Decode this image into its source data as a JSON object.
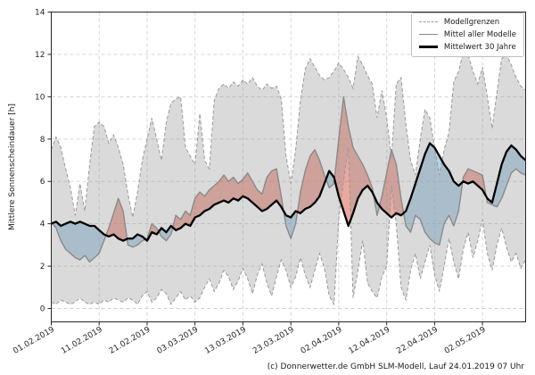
{
  "chart": {
    "ylabel": "Mittlere Sonnenscheindauer [h]",
    "caption": "(c) Donnerwetter.de GmbH SLM-Modell, Lauf 24.01.2019 07 Uhr",
    "legend": {
      "items": [
        {
          "label": "Modellgrenzen",
          "style": "dashed-gray"
        },
        {
          "label": "Mittel aller Modelle",
          "style": "solid-gray"
        },
        {
          "label": "Mittelwert 30 Jahre",
          "style": "thick-black"
        }
      ]
    }
  },
  "chart_data": {
    "type": "line",
    "title": "",
    "xlabel": "",
    "ylabel": "Mittlere Sonnenscheindauer [h]",
    "ylim": [
      0,
      14
    ],
    "yticks": [
      0,
      2,
      4,
      6,
      8,
      10,
      12,
      14
    ],
    "grid": true,
    "legend_position": "upper right",
    "x_start_date": "01.02.2019",
    "x_step": "1 day",
    "x_tick_labels": [
      "01.02.2019",
      "11.02.2019",
      "21.02.2019",
      "03.03.2019",
      "13.03.2019",
      "23.03.2019",
      "02.04.2019",
      "12.04.2019",
      "22.04.2019",
      "02.05.2019"
    ],
    "x_tick_day_indices": [
      0,
      10,
      20,
      30,
      40,
      50,
      60,
      70,
      80,
      90
    ],
    "style": {
      "band_fill": "rgba(150,150,150,0.35)",
      "band_edge": "#999999",
      "above_fill": "rgba(222,96,77,0.55)",
      "below_fill": "rgba(120,175,210,0.55)",
      "model_mean_line": "#8a8a8a",
      "mean30_line": "#000000",
      "grid_color": "#cfcfcf",
      "spine_color": "#262626",
      "tick_text_color": "#262626"
    },
    "series": [
      {
        "name": "Modellgrenzen (obere Grenze)",
        "role": "band_upper",
        "values": [
          7.5,
          8.1,
          7.6,
          6.6,
          5.7,
          4.4,
          5.9,
          4.6,
          6.8,
          8.6,
          8.8,
          8.6,
          7.8,
          8.2,
          7.6,
          6.8,
          5.4,
          4.3,
          5.5,
          7.0,
          8.0,
          9.0,
          8.0,
          7.0,
          8.8,
          9.7,
          9.9,
          10.0,
          7.6,
          7.2,
          6.8,
          9.2,
          7.0,
          6.6,
          9.8,
          10.4,
          10.6,
          10.4,
          10.7,
          10.5,
          10.8,
          10.6,
          10.9,
          10.5,
          10.3,
          10.6,
          10.4,
          10.5,
          9.9,
          7.2,
          5.9,
          7.5,
          9.8,
          11.3,
          11.8,
          11.4,
          11.0,
          10.8,
          10.9,
          11.2,
          11.6,
          11.3,
          10.9,
          10.4,
          11.9,
          11.5,
          11.0,
          10.6,
          9.0,
          10.3,
          9.0,
          7.1,
          10.6,
          10.9,
          8.7,
          7.0,
          6.3,
          8.0,
          9.4,
          9.0,
          7.6,
          6.3,
          7.5,
          8.3,
          10.7,
          11.2,
          12.1,
          12.0,
          11.2,
          10.6,
          11.4,
          10.0,
          8.5,
          10.2,
          11.8,
          12.0,
          11.5,
          10.9,
          10.5,
          10.3
        ]
      },
      {
        "name": "Modellgrenzen (untere Grenze)",
        "role": "band_lower",
        "values": [
          0.3,
          0.2,
          0.4,
          0.3,
          0.2,
          0.3,
          0.5,
          0.3,
          0.2,
          0.3,
          0.2,
          0.4,
          0.3,
          0.5,
          0.4,
          0.3,
          0.5,
          0.4,
          0.2,
          0.6,
          0.8,
          0.3,
          0.5,
          0.9,
          0.7,
          0.2,
          0.5,
          0.8,
          0.4,
          0.6,
          0.3,
          0.5,
          1.0,
          1.4,
          0.8,
          1.2,
          1.8,
          1.5,
          0.9,
          1.3,
          1.9,
          1.4,
          0.7,
          1.6,
          2.1,
          1.2,
          0.6,
          1.5,
          2.3,
          1.8,
          1.0,
          1.5,
          2.4,
          1.6,
          1.0,
          1.8,
          2.6,
          1.9,
          0.6,
          0.2,
          4.2,
          6.0,
          7.6,
          0.5,
          1.8,
          3.2,
          1.2,
          0.8,
          0.5,
          1.5,
          2.0,
          5.8,
          4.0,
          1.0,
          0.4,
          1.8,
          2.6,
          1.4,
          2.2,
          3.0,
          1.6,
          0.8,
          2.0,
          3.3,
          2.2,
          1.4,
          2.8,
          3.6,
          2.4,
          3.2,
          4.2,
          2.6,
          1.8,
          3.0,
          3.8,
          2.9,
          2.2,
          2.6,
          1.9,
          2.3
        ]
      },
      {
        "name": "Mittel aller Modelle",
        "role": "model_mean",
        "values": [
          4.1,
          3.8,
          3.2,
          2.8,
          2.6,
          2.4,
          2.3,
          2.5,
          2.2,
          2.4,
          2.6,
          3.2,
          3.8,
          4.5,
          5.2,
          4.6,
          3.0,
          2.9,
          3.0,
          3.2,
          3.3,
          4.0,
          3.8,
          3.4,
          3.2,
          3.5,
          4.4,
          4.2,
          4.6,
          4.4,
          5.2,
          5.5,
          5.3,
          5.6,
          5.8,
          6.0,
          6.3,
          6.0,
          6.2,
          5.9,
          6.1,
          6.4,
          6.0,
          5.6,
          5.4,
          6.2,
          6.5,
          6.6,
          5.3,
          3.9,
          3.3,
          4.0,
          5.5,
          6.5,
          7.2,
          7.5,
          7.0,
          6.3,
          5.7,
          5.9,
          8.0,
          10.0,
          8.6,
          7.6,
          7.2,
          6.8,
          6.3,
          5.7,
          4.4,
          5.3,
          6.4,
          7.5,
          6.8,
          5.2,
          3.9,
          3.6,
          4.4,
          4.2,
          3.6,
          3.3,
          3.1,
          3.0,
          4.0,
          4.4,
          3.9,
          4.6,
          6.2,
          6.6,
          6.5,
          6.4,
          6.3,
          5.0,
          4.9,
          4.8,
          5.2,
          5.8,
          6.4,
          6.6,
          6.4,
          6.3
        ]
      },
      {
        "name": "Mittelwert 30 Jahre",
        "role": "mean30",
        "values": [
          4.0,
          4.1,
          3.9,
          4.0,
          4.1,
          4.0,
          4.1,
          4.0,
          3.9,
          3.9,
          3.7,
          3.5,
          3.4,
          3.5,
          3.3,
          3.2,
          3.3,
          3.3,
          3.5,
          3.4,
          3.2,
          3.6,
          3.5,
          3.8,
          3.6,
          3.9,
          3.7,
          3.8,
          4.0,
          3.9,
          4.3,
          4.4,
          4.6,
          4.7,
          4.9,
          5.0,
          5.1,
          5.0,
          5.2,
          5.1,
          5.3,
          5.2,
          5.0,
          4.8,
          4.6,
          4.7,
          4.9,
          5.1,
          4.8,
          4.4,
          4.3,
          4.6,
          4.5,
          4.7,
          4.8,
          5.0,
          5.3,
          5.9,
          6.5,
          6.2,
          5.3,
          4.6,
          3.9,
          4.5,
          5.2,
          5.6,
          5.8,
          5.5,
          5.0,
          4.7,
          4.5,
          4.3,
          4.5,
          4.4,
          4.6,
          5.2,
          5.9,
          6.6,
          7.3,
          7.8,
          7.6,
          7.2,
          6.8,
          6.5,
          6.0,
          5.8,
          6.0,
          5.9,
          6.0,
          5.8,
          5.6,
          5.2,
          5.0,
          5.9,
          6.8,
          7.4,
          7.7,
          7.5,
          7.2,
          7.0
        ]
      }
    ]
  }
}
